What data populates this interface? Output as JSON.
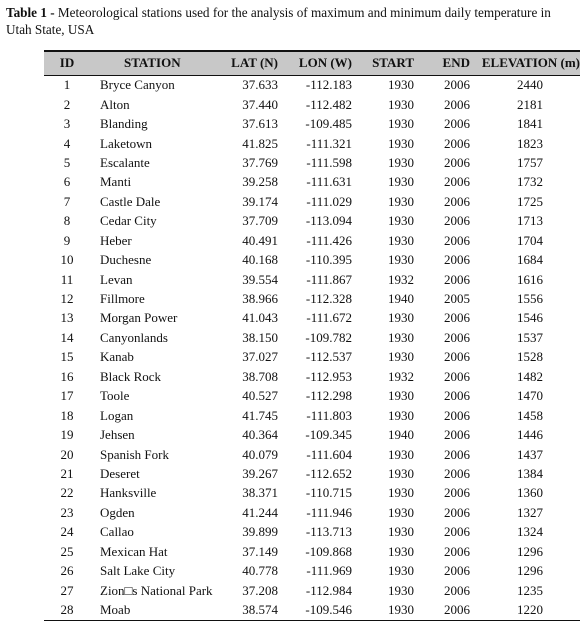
{
  "caption": {
    "label": "Table 1 -",
    "text": " Meteorological stations used for the analysis of maximum and minimum daily temperature in Utah State, USA"
  },
  "table": {
    "columns": [
      "ID",
      "STATION",
      "LAT (N)",
      "LON (W)",
      "START",
      "END",
      "ELEVATION (m)"
    ],
    "rows": [
      [
        "1",
        "Bryce Canyon",
        "37.633",
        "-112.183",
        "1930",
        "2006",
        "2440"
      ],
      [
        "2",
        "Alton",
        "37.440",
        "-112.482",
        "1930",
        "2006",
        "2181"
      ],
      [
        "3",
        "Blanding",
        "37.613",
        "-109.485",
        "1930",
        "2006",
        "1841"
      ],
      [
        "4",
        "Laketown",
        "41.825",
        "-111.321",
        "1930",
        "2006",
        "1823"
      ],
      [
        "5",
        "Escalante",
        "37.769",
        "-111.598",
        "1930",
        "2006",
        "1757"
      ],
      [
        "6",
        "Manti",
        "39.258",
        "-111.631",
        "1930",
        "2006",
        "1732"
      ],
      [
        "7",
        "Castle Dale",
        "39.174",
        "-111.029",
        "1930",
        "2006",
        "1725"
      ],
      [
        "8",
        "Cedar City",
        "37.709",
        "-113.094",
        "1930",
        "2006",
        "1713"
      ],
      [
        "9",
        "Heber",
        "40.491",
        "-111.426",
        "1930",
        "2006",
        "1704"
      ],
      [
        "10",
        "Duchesne",
        "40.168",
        "-110.395",
        "1930",
        "2006",
        "1684"
      ],
      [
        "11",
        "Levan",
        "39.554",
        "-111.867",
        "1932",
        "2006",
        "1616"
      ],
      [
        "12",
        "Fillmore",
        "38.966",
        "-112.328",
        "1940",
        "2005",
        "1556"
      ],
      [
        "13",
        "Morgan Power",
        "41.043",
        "-111.672",
        "1930",
        "2006",
        "1546"
      ],
      [
        "14",
        "Canyonlands",
        "38.150",
        "-109.782",
        "1930",
        "2006",
        "1537"
      ],
      [
        "15",
        "Kanab",
        "37.027",
        "-112.537",
        "1930",
        "2006",
        "1528"
      ],
      [
        "16",
        "Black Rock",
        "38.708",
        "-112.953",
        "1932",
        "2006",
        "1482"
      ],
      [
        "17",
        "Toole",
        "40.527",
        "-112.298",
        "1930",
        "2006",
        "1470"
      ],
      [
        "18",
        "Logan",
        "41.745",
        "-111.803",
        "1930",
        "2006",
        "1458"
      ],
      [
        "19",
        "Jehsen",
        "40.364",
        "-109.345",
        "1940",
        "2006",
        "1446"
      ],
      [
        "20",
        "Spanish Fork",
        "40.079",
        "-111.604",
        "1930",
        "2006",
        "1437"
      ],
      [
        "21",
        "Deseret",
        "39.267",
        "-112.652",
        "1930",
        "2006",
        "1384"
      ],
      [
        "22",
        "Hanksville",
        "38.371",
        "-110.715",
        "1930",
        "2006",
        "1360"
      ],
      [
        "23",
        "Ogden",
        "41.244",
        "-111.946",
        "1930",
        "2006",
        "1327"
      ],
      [
        "24",
        "Callao",
        "39.899",
        "-113.713",
        "1930",
        "2006",
        "1324"
      ],
      [
        "25",
        "Mexican Hat",
        "37.149",
        "-109.868",
        "1930",
        "2006",
        "1296"
      ],
      [
        "26",
        "Salt Lake City",
        "40.778",
        "-111.969",
        "1930",
        "2006",
        "1296"
      ],
      [
        "27",
        "Zion□s National Park",
        "37.208",
        "-112.984",
        "1930",
        "2006",
        "1235"
      ],
      [
        "28",
        "Moab",
        "38.574",
        "-109.546",
        "1930",
        "2006",
        "1220"
      ]
    ]
  }
}
